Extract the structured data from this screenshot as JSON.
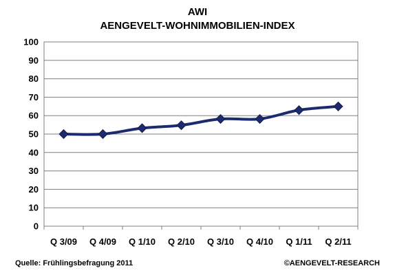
{
  "chart_data": {
    "type": "line",
    "title": "AWI",
    "subtitle": "AENGEVELT-WOHNIMMOBILIEN-INDEX",
    "categories": [
      "Q 3/09",
      "Q 4/09",
      "Q 1/10",
      "Q 2/10",
      "Q 3/10",
      "Q 4/10",
      "Q 1/11",
      "Q 2/11"
    ],
    "series": [
      {
        "values": [
          50,
          50,
          53.2,
          54.8,
          58.2,
          58.2,
          63,
          65
        ],
        "color": "#1c2b6e"
      }
    ],
    "ylim": [
      0,
      100
    ],
    "yticks": [
      0,
      10,
      20,
      30,
      40,
      50,
      60,
      70,
      80,
      90,
      100
    ],
    "grid": true,
    "legend": "none",
    "xlabel": "",
    "ylabel": ""
  },
  "footer": {
    "source": "Quelle: Frühlingsbefragung 2011",
    "copyright": "©AENGEVELT-RESEARCH"
  },
  "colors": {
    "grid": "#7f7f7f",
    "line": "#1c2b6e",
    "marker": "#1c2b6e"
  }
}
